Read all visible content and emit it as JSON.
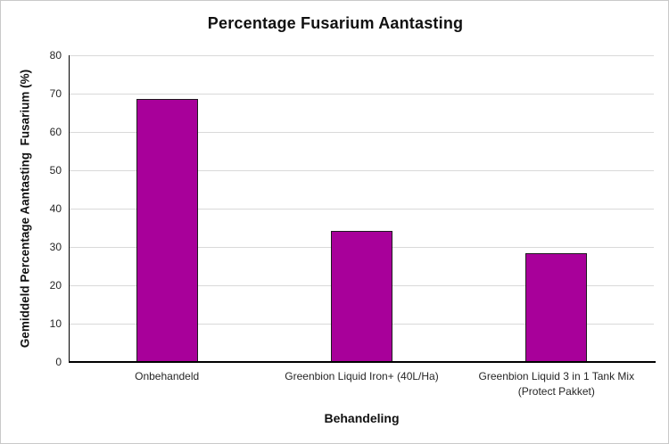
{
  "figure": {
    "background": "#ffffff",
    "border_color": "#c9c9c9"
  },
  "chart_data": {
    "type": "bar",
    "title": "Percentage Fusarium Aantasting",
    "xlabel": "Behandeling",
    "ylabel": "Gemiddeld Percentage Aantasting  Fusarium (%)",
    "categories": [
      "Onbehandeld",
      "Greenbion Liquid Iron+ (40L/Ha)",
      "Greenbion Liquid 3 in 1 Tank Mix\n(Protect Pakket)"
    ],
    "values": [
      68.7,
      34.2,
      28.4
    ],
    "ylim": [
      0,
      80
    ],
    "yticks": [
      0,
      10,
      20,
      30,
      40,
      50,
      60,
      70,
      80
    ],
    "grid": "horizontal",
    "legend": "none",
    "bar_fill": "#a8009a",
    "bar_border": "#1e1a1e",
    "gridline_color": "#d9d9d9",
    "axis_line_color": "#000000",
    "tick_label_color": "#262626",
    "title_color": "#111111"
  }
}
